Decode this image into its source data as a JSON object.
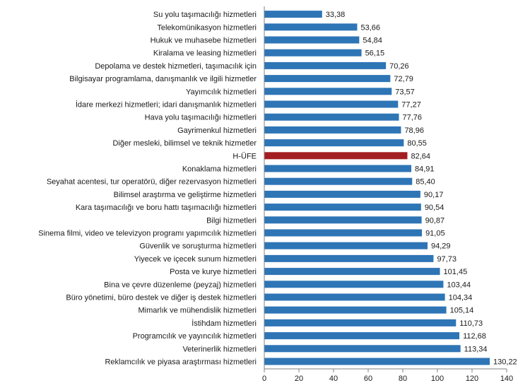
{
  "chart_data": {
    "type": "bar",
    "orientation": "horizontal",
    "title": "",
    "xlabel": "",
    "ylabel": "",
    "xlim": [
      0,
      140
    ],
    "x_ticks": [
      0,
      20,
      40,
      60,
      80,
      100,
      120,
      140
    ],
    "grid": false,
    "legend": "none",
    "colors": {
      "default": "#2E75B6",
      "highlight": "#A31E22"
    },
    "highlight_category": "H-ÜFE",
    "categories": [
      "Su yolu taşımacılığı hizmetleri",
      "Telekomünikasyon hizmetleri",
      "Hukuk ve muhasebe hizmetleri",
      "Kiralama ve leasing hizmetleri",
      "Depolama ve destek hizmetleri, taşımacılık için",
      "Bilgisayar programlama, danışmanlık ve ilgili hizmetler",
      "Yayımcılık hizmetleri",
      "İdare merkezi hizmetleri; idari danışmanlık hizmetleri",
      "Hava yolu taşımacılığı hizmetleri",
      "Gayrimenkul hizmetleri",
      "Diğer mesleki, bilimsel ve teknik hizmetler",
      "H-ÜFE",
      "Konaklama hizmetleri",
      "Seyahat acentesi, tur operatörü, diğer rezervasyon hizmetleri",
      "Bilimsel araştırma ve geliştirme hizmetleri",
      "Kara taşımacılığı ve boru hattı taşımacılığı hizmetleri",
      "Bilgi hizmetleri",
      "Sinema filmi, video ve televizyon programı yapımcılık hizmetleri",
      "Güvenlik ve soruşturma hizmetleri",
      "Yiyecek ve içecek sunum hizmetleri",
      "Posta ve kurye hizmetleri",
      "Bina ve çevre düzenleme (peyzaj) hizmetleri",
      "Büro yönetimi, büro destek ve diğer iş destek hizmetleri",
      "Mimarlık ve mühendislik hizmetleri",
      "İstihdam hizmetleri",
      "Programcılık ve yayıncılık hizmetleri",
      "Veterinerlik hizmetleri",
      "Reklamcılık ve piyasa araştırması hizmetleri"
    ],
    "values": [
      33.38,
      53.66,
      54.84,
      56.15,
      70.26,
      72.79,
      73.57,
      77.27,
      77.76,
      78.96,
      80.55,
      82.64,
      84.91,
      85.4,
      90.17,
      90.54,
      90.87,
      91.05,
      94.29,
      97.73,
      101.45,
      103.44,
      104.34,
      105.14,
      110.73,
      112.68,
      113.34,
      130.22
    ],
    "value_labels": [
      "33,38",
      "53,66",
      "54,84",
      "56,15",
      "70,26",
      "72,79",
      "73,57",
      "77,27",
      "77,76",
      "78,96",
      "80,55",
      "82,64",
      "84,91",
      "85,40",
      "90,17",
      "90,54",
      "90,87",
      "91,05",
      "94,29",
      "97,73",
      "101,45",
      "103,44",
      "104,34",
      "105,14",
      "110,73",
      "112,68",
      "113,34",
      "130,22"
    ]
  }
}
